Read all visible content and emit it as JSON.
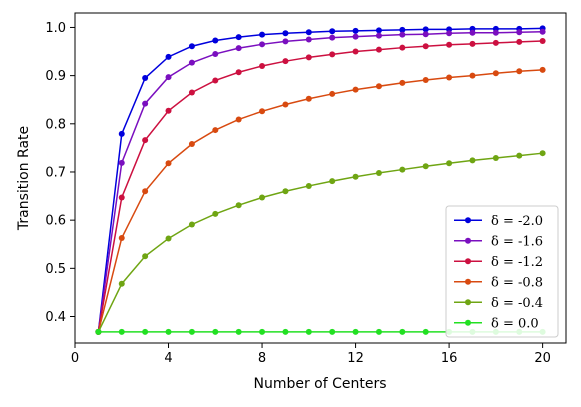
{
  "chart_data": {
    "type": "line",
    "xlabel": "Number of Centers",
    "ylabel": "Transition Rate",
    "xlim": [
      0,
      21
    ],
    "ylim": [
      0.345,
      1.03
    ],
    "xticks": [
      0,
      4,
      8,
      12,
      16,
      20
    ],
    "yticks": [
      0.4,
      0.5,
      0.6,
      0.7,
      0.8,
      0.9,
      1.0
    ],
    "grid": false,
    "legend_position": "lower-right",
    "x": [
      1,
      2,
      3,
      4,
      5,
      6,
      7,
      8,
      9,
      10,
      11,
      12,
      13,
      14,
      15,
      16,
      17,
      18,
      19,
      20
    ],
    "series": [
      {
        "name": "δ = -2.0",
        "color": "#0000dd",
        "values": [
          0.368,
          0.779,
          0.895,
          0.939,
          0.961,
          0.973,
          0.98,
          0.985,
          0.988,
          0.99,
          0.992,
          0.993,
          0.994,
          0.995,
          0.996,
          0.996,
          0.997,
          0.997,
          0.997,
          0.998
        ]
      },
      {
        "name": "δ = -1.6",
        "color": "#7a0fbf",
        "values": [
          0.368,
          0.719,
          0.842,
          0.897,
          0.927,
          0.945,
          0.957,
          0.965,
          0.971,
          0.975,
          0.979,
          0.981,
          0.983,
          0.985,
          0.986,
          0.988,
          0.989,
          0.989,
          0.99,
          0.991
        ]
      },
      {
        "name": "δ = -1.2",
        "color": "#cc1040",
        "values": [
          0.368,
          0.647,
          0.766,
          0.827,
          0.865,
          0.89,
          0.907,
          0.92,
          0.93,
          0.938,
          0.944,
          0.95,
          0.954,
          0.958,
          0.961,
          0.964,
          0.966,
          0.968,
          0.97,
          0.972
        ]
      },
      {
        "name": "δ = -0.8",
        "color": "#d84a10",
        "values": [
          0.368,
          0.563,
          0.66,
          0.718,
          0.758,
          0.787,
          0.809,
          0.826,
          0.84,
          0.852,
          0.862,
          0.871,
          0.878,
          0.885,
          0.891,
          0.896,
          0.9,
          0.905,
          0.909,
          0.912
        ]
      },
      {
        "name": "δ = -0.4",
        "color": "#6fa513",
        "values": [
          0.368,
          0.468,
          0.525,
          0.562,
          0.591,
          0.613,
          0.631,
          0.647,
          0.66,
          0.671,
          0.681,
          0.69,
          0.698,
          0.705,
          0.712,
          0.718,
          0.724,
          0.729,
          0.734,
          0.739
        ]
      },
      {
        "name": "δ = 0.0",
        "color": "#22e022",
        "values": [
          0.368,
          0.368,
          0.368,
          0.368,
          0.368,
          0.368,
          0.368,
          0.368,
          0.368,
          0.368,
          0.368,
          0.368,
          0.368,
          0.368,
          0.368,
          0.368,
          0.368,
          0.368,
          0.368,
          0.368
        ]
      }
    ]
  }
}
